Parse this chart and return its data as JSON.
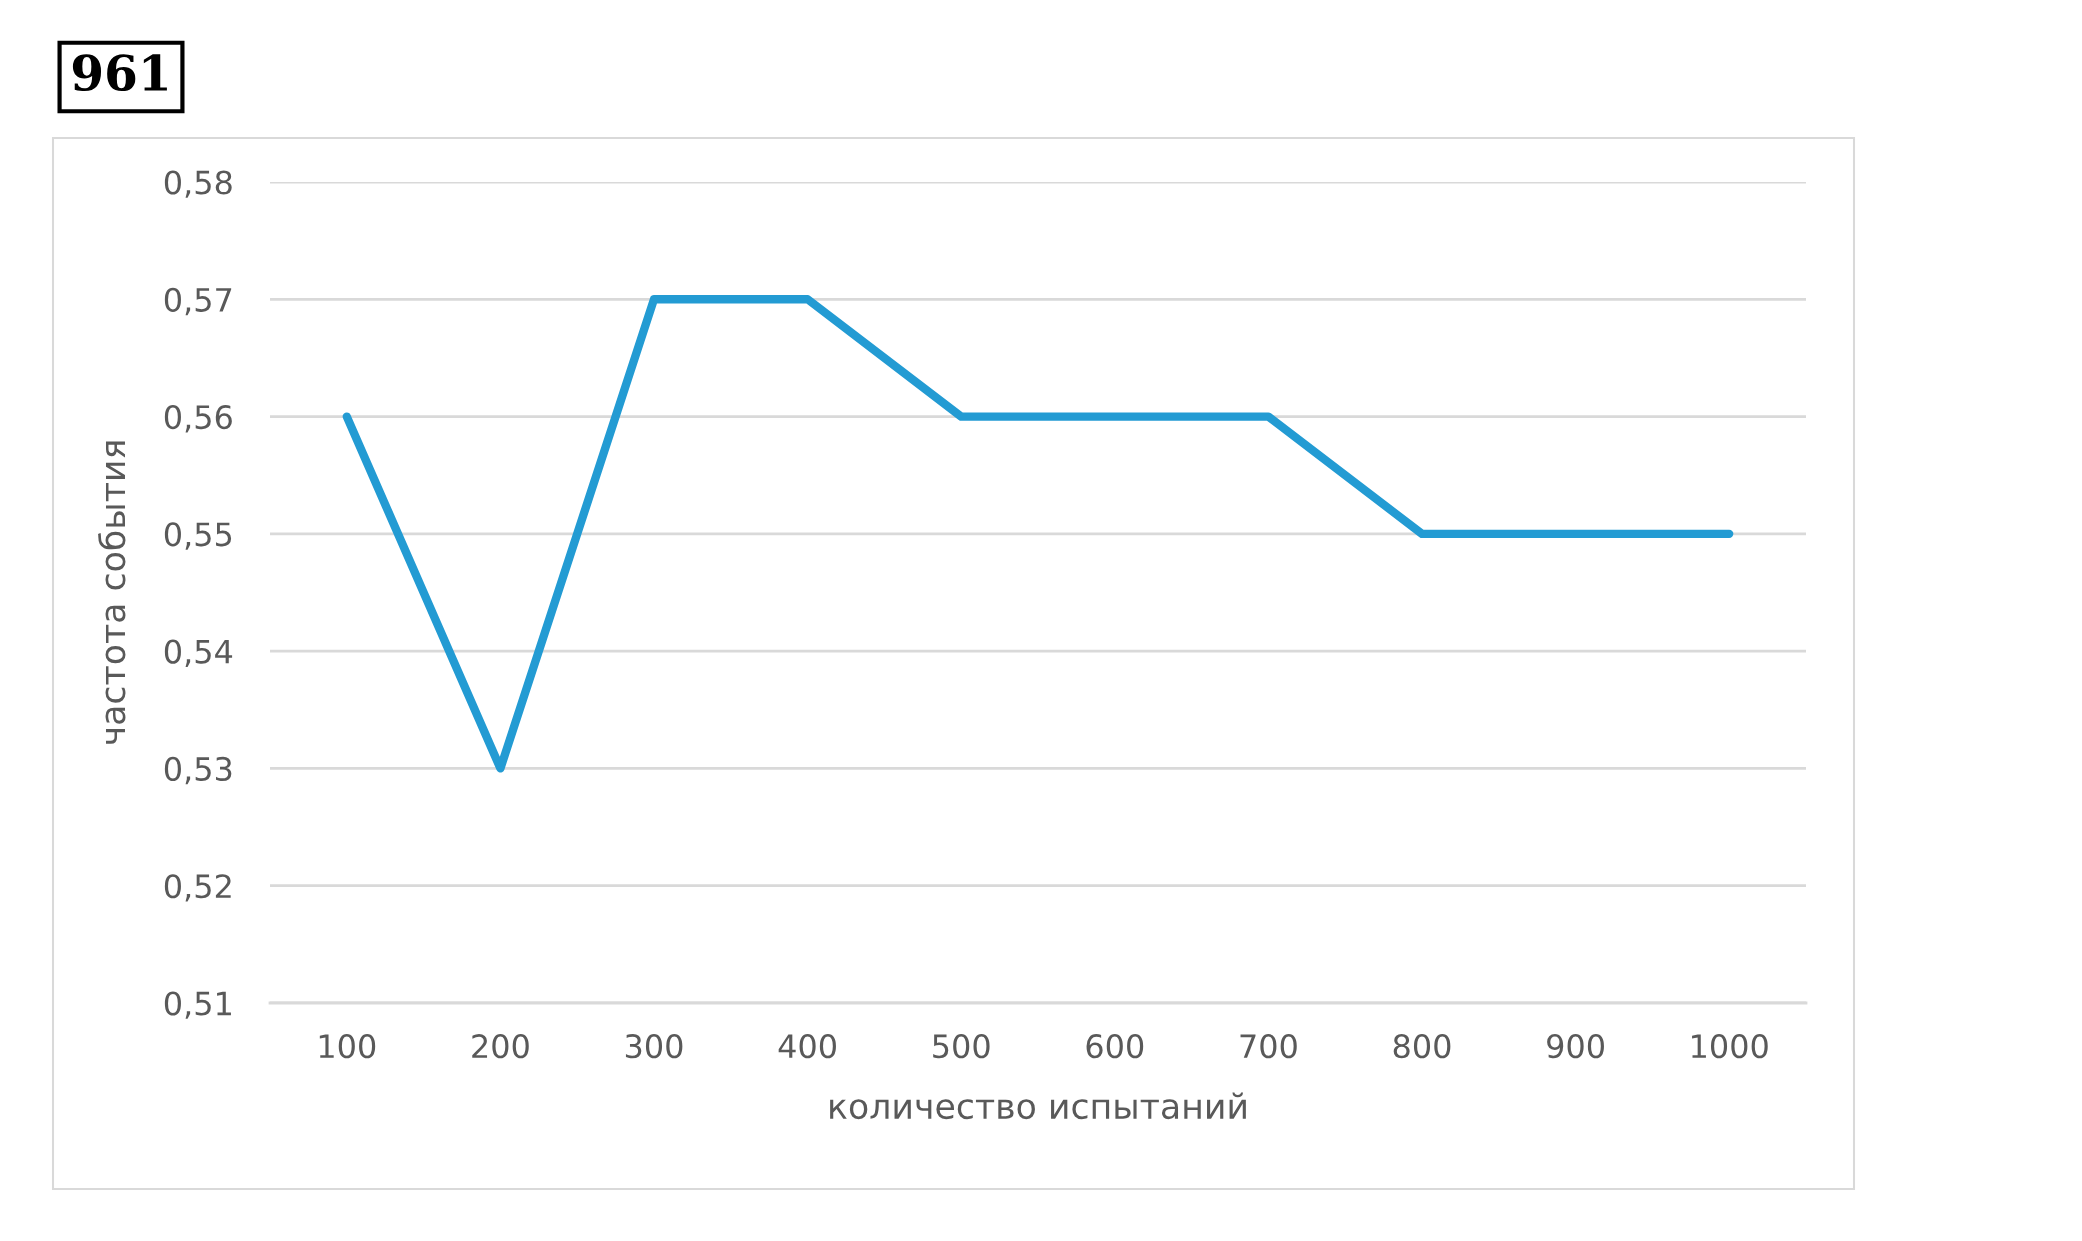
{
  "chart_data": {
    "type": "line",
    "title": "961",
    "xlabel": "количество испытаний",
    "ylabel": "частота события",
    "categories": [
      "100",
      "200",
      "300",
      "400",
      "500",
      "600",
      "700",
      "800",
      "900",
      "1000"
    ],
    "series": [
      {
        "color": "#239bd3",
        "values": [
          0.56,
          0.53,
          0.57,
          0.57,
          0.56,
          0.56,
          0.56,
          0.55,
          0.55,
          0.55
        ]
      }
    ],
    "ylim": [
      0.51,
      0.58
    ],
    "yticks": [
      {
        "value": 0.51,
        "label": "0,51"
      },
      {
        "value": 0.52,
        "label": "0,52"
      },
      {
        "value": 0.53,
        "label": "0,53"
      },
      {
        "value": 0.54,
        "label": "0,54"
      },
      {
        "value": 0.55,
        "label": "0,55"
      },
      {
        "value": 0.56,
        "label": "0,56"
      },
      {
        "value": 0.57,
        "label": "0,57"
      },
      {
        "value": 0.58,
        "label": "0,58"
      }
    ],
    "grid": "y",
    "marker": "none",
    "line_style": "solid"
  }
}
